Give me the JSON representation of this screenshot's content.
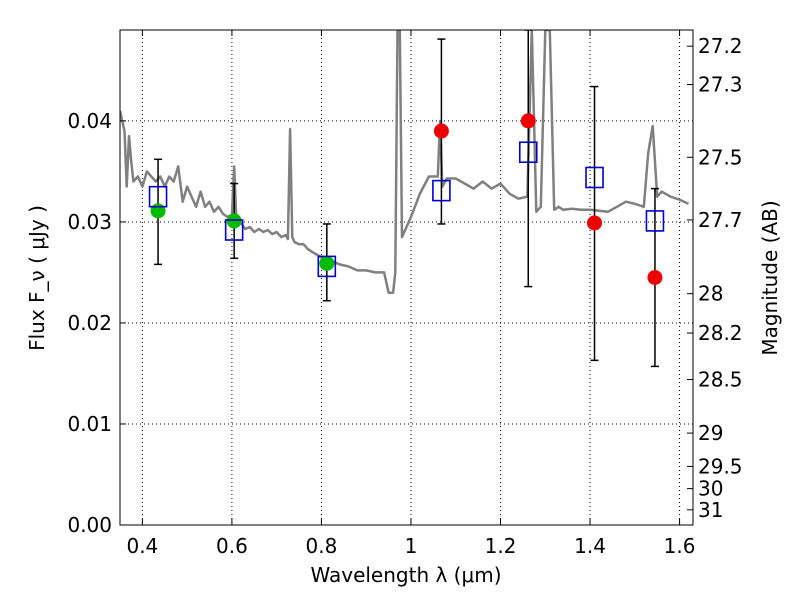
{
  "chart_data": {
    "type": "scatter",
    "xlabel": "Wavelength  λ (μm)",
    "ylabel": "Flux  F_ν  ( μJy )",
    "ylabel2": "Magnitude (AB)",
    "xlim": [
      0.35,
      1.63
    ],
    "ylim": [
      0.0,
      0.049
    ],
    "grid": true,
    "x_ticks": [
      0.4,
      0.6,
      0.8,
      1.0,
      1.2,
      1.4,
      1.6
    ],
    "x_tick_labels": [
      "0.4",
      "0.6",
      "0.8",
      "1",
      "1.2",
      "1.4",
      "1.6"
    ],
    "y_ticks": [
      0.0,
      0.01,
      0.02,
      0.03,
      0.04
    ],
    "y_tick_labels": [
      "0.00",
      "0.01",
      "0.02",
      "0.03",
      "0.04"
    ],
    "mag_ticks": [
      {
        "flux": 0.0474,
        "label": "27.2"
      },
      {
        "flux": 0.0436,
        "label": "27.3"
      },
      {
        "flux": 0.0364,
        "label": "27.5"
      },
      {
        "flux": 0.0302,
        "label": "27.7"
      },
      {
        "flux": 0.0229,
        "label": "28"
      },
      {
        "flux": 0.019,
        "label": "28.2"
      },
      {
        "flux": 0.0144,
        "label": "28.5"
      },
      {
        "flux": 0.0091,
        "label": "29"
      },
      {
        "flux": 0.0058,
        "label": "29.5"
      },
      {
        "flux": 0.0036,
        "label": "30"
      },
      {
        "flux": 0.0015,
        "label": "31"
      }
    ],
    "series": [
      {
        "kind": "model_spectrum",
        "color": "#808080",
        "x": [
          0.35,
          0.36,
          0.365,
          0.37,
          0.375,
          0.38,
          0.39,
          0.4,
          0.41,
          0.42,
          0.43,
          0.44,
          0.45,
          0.46,
          0.47,
          0.48,
          0.49,
          0.5,
          0.51,
          0.52,
          0.53,
          0.54,
          0.55,
          0.56,
          0.57,
          0.58,
          0.59,
          0.6,
          0.605,
          0.61,
          0.62,
          0.63,
          0.64,
          0.65,
          0.66,
          0.67,
          0.68,
          0.69,
          0.7,
          0.71,
          0.72,
          0.725,
          0.73,
          0.735,
          0.74,
          0.75,
          0.76,
          0.77,
          0.78,
          0.8,
          0.82,
          0.84,
          0.86,
          0.88,
          0.9,
          0.92,
          0.94,
          0.95,
          0.96,
          0.965,
          0.97,
          0.975,
          0.98,
          0.99,
          1.0,
          1.02,
          1.04,
          1.06,
          1.065,
          1.07,
          1.08,
          1.1,
          1.12,
          1.14,
          1.16,
          1.18,
          1.2,
          1.22,
          1.24,
          1.26,
          1.27,
          1.28,
          1.29,
          1.3,
          1.31,
          1.32,
          1.33,
          1.34,
          1.36,
          1.38,
          1.4,
          1.42,
          1.44,
          1.46,
          1.48,
          1.5,
          1.52,
          1.53,
          1.54,
          1.55,
          1.56,
          1.58,
          1.6,
          1.62
        ],
        "y": [
          0.041,
          0.039,
          0.0335,
          0.0385,
          0.036,
          0.034,
          0.0345,
          0.0335,
          0.035,
          0.0345,
          0.034,
          0.0345,
          0.0335,
          0.0345,
          0.034,
          0.0355,
          0.032,
          0.0335,
          0.0325,
          0.0315,
          0.033,
          0.0315,
          0.032,
          0.031,
          0.0315,
          0.0308,
          0.0305,
          0.0307,
          0.0355,
          0.03,
          0.0299,
          0.0293,
          0.0295,
          0.029,
          0.0293,
          0.029,
          0.0292,
          0.0288,
          0.029,
          0.0285,
          0.0287,
          0.0283,
          0.0392,
          0.0285,
          0.028,
          0.0278,
          0.0278,
          0.0273,
          0.027,
          0.0265,
          0.0262,
          0.0258,
          0.0256,
          0.0252,
          0.0252,
          0.025,
          0.025,
          0.023,
          0.023,
          0.025,
          0.049,
          0.049,
          0.0285,
          0.0295,
          0.0305,
          0.0328,
          0.0345,
          0.0345,
          0.04,
          0.0335,
          0.0343,
          0.0343,
          0.0338,
          0.0333,
          0.034,
          0.0333,
          0.0338,
          0.0328,
          0.0323,
          0.0325,
          0.049,
          0.031,
          0.0315,
          0.049,
          0.049,
          0.0312,
          0.0315,
          0.0312,
          0.0313,
          0.0312,
          0.0312,
          0.0311,
          0.031,
          0.0315,
          0.032,
          0.0318,
          0.0315,
          0.0368,
          0.0395,
          0.0325,
          0.033,
          0.0325,
          0.0322,
          0.0318
        ]
      },
      {
        "kind": "model_photometry",
        "marker": "open-square",
        "color": "#0000cc",
        "x": [
          0.435,
          0.605,
          0.812,
          1.068,
          1.262,
          1.41,
          1.545
        ],
        "y": [
          0.0325,
          0.0292,
          0.0256,
          0.0331,
          0.0369,
          0.0344,
          0.0301
        ]
      },
      {
        "kind": "observed_optical",
        "marker": "filled-circle",
        "color": "#00bb00",
        "x": [
          0.435,
          0.605,
          0.812
        ],
        "y": [
          0.0311,
          0.0301,
          0.0259
        ],
        "err_low": [
          0.0258,
          0.0264,
          0.0222
        ],
        "err_high": [
          0.0362,
          0.0338,
          0.0298
        ]
      },
      {
        "kind": "observed_nir",
        "marker": "filled-circle",
        "color": "#ee0000",
        "x": [
          1.068,
          1.262,
          1.41,
          1.545
        ],
        "y": [
          0.039,
          0.04,
          0.0299,
          0.0245
        ],
        "err_low": [
          0.0298,
          0.0236,
          0.0163,
          0.0157
        ],
        "err_high": [
          0.0481,
          0.049,
          0.0434,
          0.0333
        ]
      }
    ]
  }
}
